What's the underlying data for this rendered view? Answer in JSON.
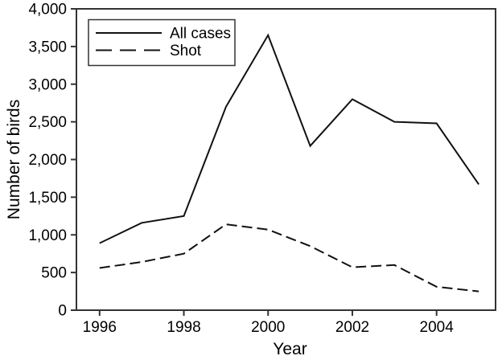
{
  "chart_data": {
    "type": "line",
    "title": "",
    "xlabel": "Year",
    "ylabel": "Number of birds",
    "x": [
      1996,
      1997,
      1998,
      1999,
      2000,
      2001,
      2002,
      2003,
      2004,
      2005
    ],
    "series": [
      {
        "name": "All cases",
        "style": "solid",
        "values": [
          890,
          1160,
          1250,
          2700,
          3650,
          2180,
          2800,
          2500,
          2480,
          1670
        ]
      },
      {
        "name": "Shot",
        "style": "dashed",
        "values": [
          560,
          640,
          750,
          1140,
          1070,
          850,
          570,
          600,
          310,
          250
        ]
      }
    ],
    "xlim": [
      1995.45,
      2005.4
    ],
    "ylim": [
      0,
      4000
    ],
    "xticks": [
      1996,
      1998,
      2000,
      2002,
      2004
    ],
    "xtick_labels": [
      "1996",
      "1998",
      "2000",
      "2002",
      "2004"
    ],
    "yticks": [
      0,
      500,
      1000,
      1500,
      2000,
      2500,
      3000,
      3500,
      4000
    ],
    "ytick_labels": [
      "0",
      "500",
      "1,000",
      "1,500",
      "2,000",
      "2,500",
      "3,000",
      "3,500",
      "4,000"
    ],
    "grid": false,
    "legend_position": "top-left",
    "colors": {
      "line": "#111111",
      "frame": "#333333",
      "text": "#000000",
      "background": "#ffffff"
    }
  }
}
